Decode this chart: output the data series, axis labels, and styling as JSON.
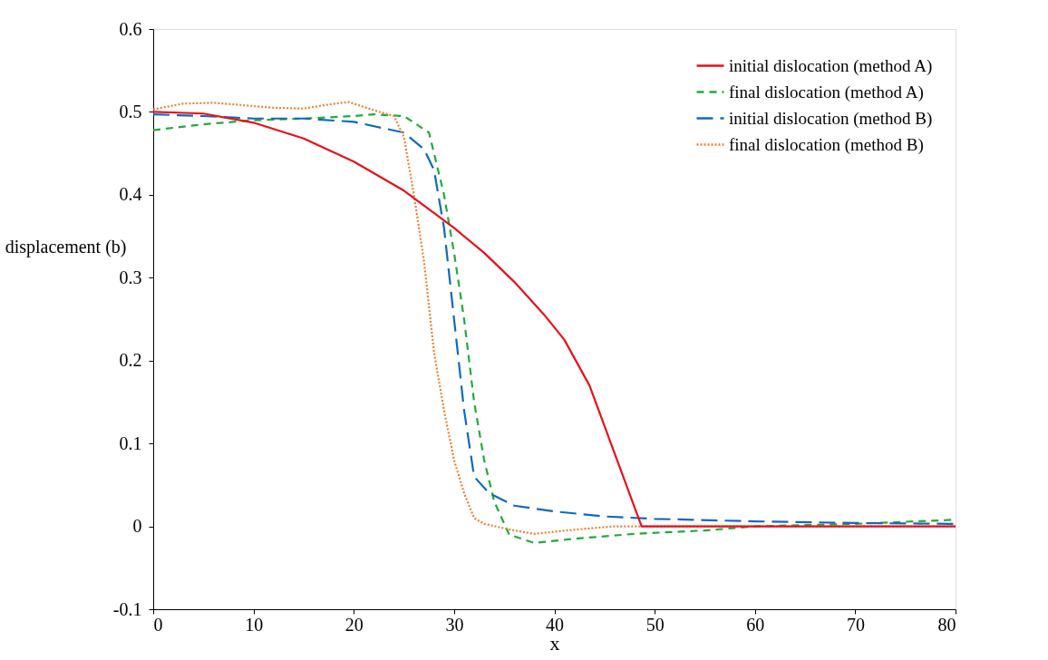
{
  "chart_data": {
    "type": "line",
    "xlabel": "x",
    "ylabel": "displacement (b)",
    "xlim": [
      0,
      80
    ],
    "ylim": [
      -0.1,
      0.6
    ],
    "xticks": [
      0,
      10,
      20,
      30,
      40,
      50,
      60,
      70,
      80
    ],
    "yticks": [
      -0.1,
      0,
      0.1,
      0.2,
      0.3,
      0.4,
      0.5,
      0.6
    ],
    "grid": false,
    "legend": "top right",
    "marker": "none",
    "series": [
      {
        "name": "initial dislocation (method A)",
        "color": "#e8101c",
        "line_style": "solid",
        "x": [
          0,
          5,
          10,
          15,
          20,
          25,
          30,
          33,
          36,
          39,
          41,
          43.5,
          48.7,
          80
        ],
        "values": [
          0.5,
          0.498,
          0.487,
          0.468,
          0.44,
          0.405,
          0.36,
          0.33,
          0.295,
          0.255,
          0.225,
          0.17,
          0.0,
          0.0
        ]
      },
      {
        "name": "final dislocation (method A)",
        "color": "#22aa3a",
        "line_style": "dashed",
        "x": [
          0,
          5,
          10,
          15,
          20,
          22,
          25,
          27.5,
          29,
          30,
          31,
          32,
          33,
          34,
          35.5,
          38,
          42,
          48,
          55,
          60,
          70,
          80
        ],
        "values": [
          0.478,
          0.485,
          0.49,
          0.492,
          0.495,
          0.497,
          0.495,
          0.475,
          0.4,
          0.33,
          0.25,
          0.15,
          0.08,
          0.03,
          -0.01,
          -0.02,
          -0.015,
          -0.009,
          -0.005,
          0.0,
          0.003,
          0.008
        ]
      },
      {
        "name": "initial dislocation (method B)",
        "color": "#1068c0",
        "line_style": "longdash",
        "x": [
          0,
          5,
          10,
          15,
          20,
          25,
          27,
          28,
          29,
          30,
          31,
          32,
          33.5,
          36,
          40,
          45,
          50,
          60,
          70,
          80
        ],
        "values": [
          0.497,
          0.495,
          0.492,
          0.492,
          0.488,
          0.475,
          0.455,
          0.43,
          0.36,
          0.25,
          0.14,
          0.06,
          0.04,
          0.025,
          0.018,
          0.012,
          0.009,
          0.006,
          0.004,
          0.003
        ]
      },
      {
        "name": "final dislocation (method B)",
        "color": "#f08030",
        "line_style": "dotted",
        "x": [
          0,
          3,
          6,
          9,
          12,
          15,
          17,
          19.5,
          22,
          24,
          25,
          26,
          27,
          28,
          29,
          30,
          31,
          32,
          33,
          36,
          38,
          42,
          46,
          48.7,
          80
        ],
        "values": [
          0.503,
          0.51,
          0.511,
          0.508,
          0.505,
          0.504,
          0.508,
          0.512,
          0.502,
          0.495,
          0.47,
          0.4,
          0.32,
          0.21,
          0.14,
          0.08,
          0.04,
          0.01,
          0.003,
          -0.005,
          -0.009,
          -0.004,
          0.0,
          0.0,
          0.0
        ]
      }
    ]
  }
}
